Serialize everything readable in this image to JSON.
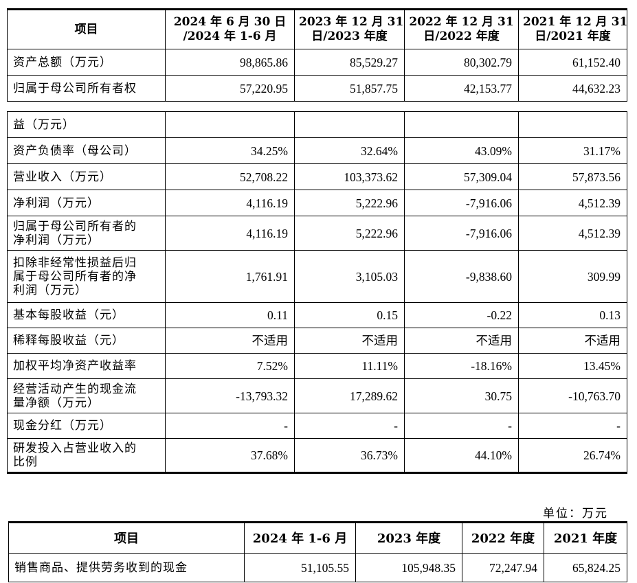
{
  "table1": {
    "headers": {
      "item": "项目",
      "col1": [
        "2024 年 6 月 30 日",
        "/2024 年 1-6 月"
      ],
      "col2": [
        "2023 年 12 月 31",
        "日/2023 年度"
      ],
      "col3": [
        "2022 年 12 月 31",
        "日/2022 年度"
      ],
      "col4": [
        "2021 年 12 月 31",
        "日/2021 年度"
      ]
    },
    "rows_top": [
      {
        "label": "资产总额（万元）",
        "values": [
          "98,865.86",
          "85,529.27",
          "80,302.79",
          "61,152.40"
        ]
      },
      {
        "label": "归属于母公司所有者权",
        "values": [
          "57,220.95",
          "51,857.75",
          "42,153.77",
          "44,632.23"
        ]
      }
    ],
    "continued_label": "益（万元）",
    "rows": [
      {
        "label": [
          "资产负债率（母公司）"
        ],
        "values": [
          "34.25%",
          "32.64%",
          "43.09%",
          "31.17%"
        ],
        "h": 38
      },
      {
        "label": [
          "营业收入（万元）"
        ],
        "values": [
          "52,708.22",
          "103,373.62",
          "57,309.04",
          "57,873.56"
        ],
        "h": 38
      },
      {
        "label": [
          "净利润（万元）"
        ],
        "values": [
          "4,116.19",
          "5,222.96",
          "-7,916.06",
          "4,512.39"
        ],
        "h": 38
      },
      {
        "label": [
          "归属于母公司所有者的",
          "净利润（万元）"
        ],
        "values": [
          "4,116.19",
          "5,222.96",
          "-7,916.06",
          "4,512.39"
        ],
        "h": 50
      },
      {
        "label": [
          "扣除非经常性损益后归",
          "属于母公司所有者的净",
          "利润（万元）"
        ],
        "values": [
          "1,761.91",
          "3,105.03",
          "-9,838.60",
          "309.99"
        ],
        "h": 76
      },
      {
        "label": [
          "基本每股收益（元）"
        ],
        "values": [
          "0.11",
          "0.15",
          "-0.22",
          "0.13"
        ],
        "h": 37
      },
      {
        "label": [
          "稀释每股收益（元）"
        ],
        "values": [
          "不适用",
          "不适用",
          "不适用",
          "不适用"
        ],
        "h": 37
      },
      {
        "label": [
          "加权平均净资产收益率"
        ],
        "values": [
          "7.52%",
          "11.11%",
          "-18.16%",
          "13.45%"
        ],
        "h": 37
      },
      {
        "label": [
          "经营活动产生的现金流",
          "量净额（万元）"
        ],
        "values": [
          "-13,793.32",
          "17,289.62",
          "30.75",
          "-10,763.70"
        ],
        "h": 50
      },
      {
        "label": [
          "现金分红（万元）"
        ],
        "values": [
          "-",
          "-",
          "-",
          "-"
        ],
        "h": 37
      },
      {
        "label": [
          "研发投入占营业收入的",
          "比例"
        ],
        "values": [
          "37.68%",
          "36.73%",
          "44.10%",
          "26.74%"
        ],
        "h": 50
      }
    ]
  },
  "unit_note": "单位：万元",
  "table2": {
    "headers": [
      "项目",
      "2024 年 1-6 月",
      "2023 年度",
      "2022 年度",
      "2021 年度"
    ],
    "rows": [
      {
        "label": "销售商品、提供劳务收到的现金",
        "values": [
          "51,105.55",
          "105,948.35",
          "72,247.94",
          "65,824.25"
        ]
      }
    ]
  }
}
